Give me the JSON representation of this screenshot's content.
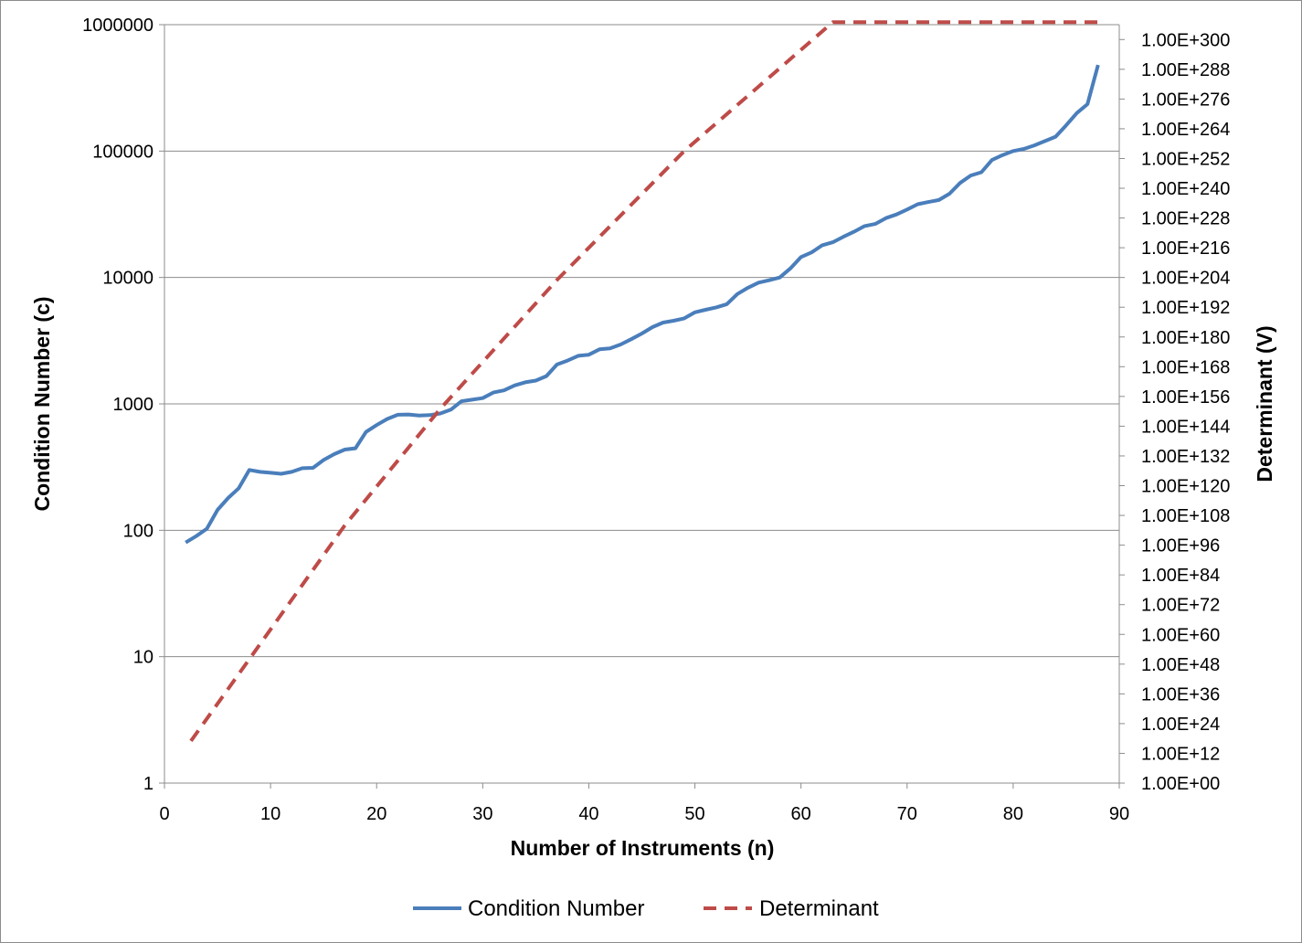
{
  "chart_data": {
    "type": "line",
    "title": "",
    "xlabel": "Number of Instruments (n)",
    "ylabel": "Condition Number (c)",
    "y2label": "Determinant (V)",
    "xlim": [
      0,
      90
    ],
    "x_ticks": [
      "0",
      "10",
      "20",
      "30",
      "40",
      "50",
      "60",
      "70",
      "80",
      "90"
    ],
    "yscale": "log",
    "ylim": [
      1,
      1000000
    ],
    "y_ticks": [
      "1",
      "10",
      "100",
      "1000",
      "10000",
      "100000",
      "1000000"
    ],
    "y2scale": "log",
    "y2lim_exponent": [
      0,
      306
    ],
    "y2_ticks": [
      "1.00E+00",
      "1.00E+12",
      "1.00E+24",
      "1.00E+36",
      "1.00E+48",
      "1.00E+60",
      "1.00E+72",
      "1.00E+84",
      "1.00E+96",
      "1.00E+108",
      "1.00E+120",
      "1.00E+132",
      "1.00E+144",
      "1.00E+156",
      "1.00E+168",
      "1.00E+180",
      "1.00E+192",
      "1.00E+204",
      "1.00E+216",
      "1.00E+228",
      "1.00E+240",
      "1.00E+252",
      "1.00E+264",
      "1.00E+276",
      "1.00E+288",
      "1.00E+300"
    ],
    "grid": "horizontal",
    "legend_position": "bottom",
    "series": [
      {
        "name": "Condition Number",
        "axis": "left",
        "color": "#4a7ebb",
        "style": "solid",
        "x": [
          2,
          3,
          4,
          5,
          6,
          7,
          8,
          9,
          10,
          11,
          12,
          13,
          14,
          15,
          16,
          17,
          18,
          19,
          20,
          21,
          22,
          23,
          24,
          25,
          26,
          27,
          28,
          29,
          30,
          31,
          32,
          33,
          34,
          35,
          36,
          37,
          38,
          39,
          40,
          41,
          42,
          43,
          44,
          45,
          46,
          47,
          48,
          49,
          50,
          51,
          52,
          53,
          54,
          55,
          56,
          57,
          58,
          59,
          60,
          61,
          62,
          63,
          64,
          65,
          66,
          67,
          68,
          69,
          70,
          71,
          72,
          73,
          74,
          75,
          76,
          77,
          78,
          79,
          80,
          81,
          82,
          83,
          84,
          85,
          86,
          87,
          88
        ],
        "y": [
          80,
          90,
          103,
          145,
          180,
          215,
          300,
          290,
          285,
          280,
          290,
          310,
          312,
          360,
          400,
          435,
          445,
          600,
          680,
          760,
          820,
          825,
          810,
          815,
          840,
          900,
          1050,
          1080,
          1110,
          1230,
          1280,
          1400,
          1480,
          1530,
          1660,
          2050,
          2200,
          2400,
          2450,
          2700,
          2750,
          2950,
          3250,
          3600,
          4050,
          4400,
          4550,
          4750,
          5300,
          5550,
          5800,
          6150,
          7400,
          8300,
          9100,
          9500,
          10000,
          11800,
          14500,
          15800,
          18000,
          19000,
          21000,
          23000,
          25500,
          26500,
          29500,
          31500,
          34500,
          38000,
          39500,
          41000,
          46000,
          56000,
          64000,
          68000,
          85000,
          93000,
          100000,
          104000,
          111000,
          120000,
          130000,
          160000,
          200000,
          235000,
          480000
        ]
      },
      {
        "name": "Determinant",
        "axis": "right",
        "color": "#be4b48",
        "style": "dashed",
        "x": [
          2.5,
          7.5,
          17,
          26,
          37,
          49,
          63,
          88
        ],
        "y_exponent": [
          17,
          47,
          104,
          151,
          203,
          255,
          307,
          307
        ]
      }
    ]
  }
}
